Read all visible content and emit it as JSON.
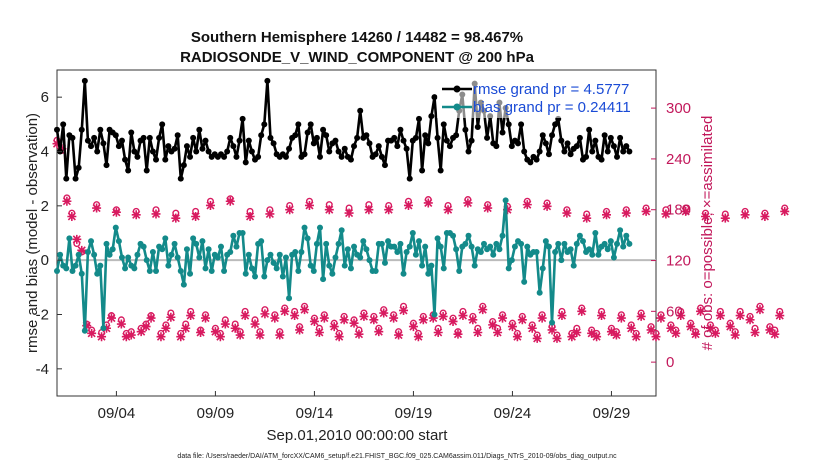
{
  "chart_data": {
    "type": "line",
    "title_line1": "Southern Hemisphere 14260 / 14482 = 98.467%",
    "title_line2": "RADIOSONDE_V_WIND_COMPONENT @ 200 hPa",
    "xlabel": "Sep.01,2010 00:00:00 start",
    "ylabel_left": "rmse and bias (model - observation)",
    "ylabel_right": "# of obs: o=possible; ×=assimilated",
    "footer": "data file: /Users/raeder/DAI/ATM_forcXX/CAM6_setup/f.e21.FHIST_BGC.f09_025.CAM6assim.011/Diags_NTrS_2010-09/obs_diag_output.nc",
    "x_day_range": [
      0.5,
      30.75
    ],
    "xticks": [
      {
        "day": 3.5,
        "label": "09/04"
      },
      {
        "day": 8.5,
        "label": "09/09"
      },
      {
        "day": 13.5,
        "label": "09/14"
      },
      {
        "day": 18.5,
        "label": "09/19"
      },
      {
        "day": 23.5,
        "label": "09/24"
      },
      {
        "day": 28.5,
        "label": "09/29"
      }
    ],
    "ylim_left": [
      -5,
      7
    ],
    "yticks_left": [
      "-4",
      "-2",
      "0",
      "2",
      "4",
      "6"
    ],
    "ylim_right": [
      -40,
      345
    ],
    "yticks_right": [
      "0",
      "60",
      "120",
      "180",
      "240",
      "300"
    ],
    "colors": {
      "rmse": "#000000",
      "bias": "#138a8a",
      "counts": "#d81b60",
      "zero_line": "#bbbbbb"
    },
    "series": [
      {
        "name": "rmse grand pr = 4.5777",
        "values": [
          4.8,
          4.0,
          5.0,
          3.0,
          4.6,
          4.5,
          3.0,
          3.4,
          4.8,
          6.6,
          4.4,
          4.2,
          4.5,
          4.0,
          4.8,
          4.3,
          3.5,
          4.8,
          4.7,
          4.6,
          4.2,
          4.4,
          3.7,
          3.3,
          4.7,
          4.0,
          3.8,
          4.4,
          4.5,
          3.3,
          4.5,
          4.0,
          3.7,
          4.5,
          5.0,
          3.7,
          4.2,
          4.0,
          4.1,
          4.6,
          3.0,
          3.5,
          4.2,
          3.8,
          4.5,
          4.0,
          4.8,
          4.1,
          4.4,
          4.0,
          3.8,
          3.9,
          3.8,
          3.9,
          3.8,
          4.0,
          4.5,
          4.2,
          3.8,
          4.4,
          5.2,
          3.6,
          4.4,
          4.0,
          3.7,
          3.8,
          4.6,
          5.0,
          6.6,
          4.5,
          4.3,
          3.9,
          3.8,
          3.9,
          3.8,
          4.1,
          4.5,
          4.6,
          5.0,
          3.8,
          3.9,
          4.7,
          5.0,
          4.3,
          4.5,
          3.8,
          4.8,
          4.6,
          4.0,
          4.3,
          4.4,
          4.0,
          3.8,
          4.1,
          3.8,
          3.7,
          4.2,
          4.5,
          5.5,
          4.5,
          4.6,
          4.3,
          3.8,
          3.9,
          4.2,
          3.8,
          3.5,
          4.4,
          4.4,
          4.5,
          4.2,
          4.8,
          4.4,
          4.1,
          3.0,
          4.4,
          4.5,
          5.2,
          3.3,
          4.6,
          4.3,
          5.3,
          6.0,
          4.5,
          3.3,
          5.0,
          4.4,
          4.2,
          4.5,
          4.6,
          5.5,
          6.1,
          4.8,
          4.0,
          4.4,
          6.5,
          4.9,
          5.8,
          5.5,
          4.5,
          5.3,
          4.3,
          4.2,
          5.8,
          4.7,
          5.6,
          5.0,
          4.2,
          4.4,
          4.3,
          5.0,
          4.0,
          3.7,
          3.6,
          3.8,
          3.7,
          4.0,
          4.6,
          4.3,
          3.9,
          4.6,
          5.0,
          5.2,
          4.4,
          4.0,
          4.3,
          3.9,
          4.1,
          4.2,
          4.5,
          3.7,
          3.8,
          4.8,
          4.0,
          4.4,
          3.8,
          3.7,
          4.6,
          4.0,
          4.5,
          4.2,
          3.8,
          4.5,
          4.0,
          4.2,
          4.0
        ]
      },
      {
        "name": "bias grand pr = 0.24411",
        "values": [
          -0.4,
          0.2,
          -0.2,
          -0.3,
          0.8,
          -0.4,
          -0.2,
          0.2,
          -0.5,
          -2.6,
          0.3,
          0.7,
          0.2,
          -0.5,
          -0.2,
          -2.5,
          0.6,
          0.2,
          0.4,
          1.2,
          0.7,
          0.1,
          -0.3,
          0.1,
          -0.2,
          -0.3,
          0.2,
          0.6,
          0.5,
          0.0,
          -0.4,
          0.3,
          -0.4,
          0.5,
          0.4,
          0.8,
          -0.2,
          0.2,
          0.6,
          0.1,
          -0.4,
          -0.9,
          0.4,
          -0.5,
          0.8,
          0.6,
          0.1,
          0.7,
          -0.3,
          0.4,
          -0.4,
          0.2,
          0.1,
          0.5,
          -0.4,
          0.2,
          0.3,
          0.9,
          0.5,
          1.0,
          1.0,
          -0.5,
          0.2,
          -0.3,
          -0.6,
          0.6,
          0.7,
          -0.6,
          0.0,
          0.2,
          -0.1,
          -0.3,
          0.2,
          -0.6,
          0.1,
          -1.4,
          0.2,
          0.3,
          -0.4,
          0.3,
          1.2,
          0.8,
          -0.2,
          -0.4,
          0.6,
          1.2,
          -0.7,
          0.6,
          -0.2,
          -0.5,
          0.1,
          0.6,
          1.1,
          -0.2,
          0.4,
          -0.3,
          0.5,
          0.2,
          0.1,
          0.7,
          0.4,
          0.0,
          -0.4,
          -0.4,
          0.6,
          0.6,
          -0.1,
          0.7,
          0.5,
          0.5,
          0.3,
          0.6,
          -0.5,
          0.3,
          0.5,
          1.0,
          0.2,
          0.7,
          -0.2,
          0.5,
          -0.5,
          -0.2,
          -2.0,
          0.8,
          0.5,
          -0.3,
          1.0,
          1.0,
          0.9,
          0.4,
          -0.4,
          0.5,
          0.6,
          0.9,
          0.5,
          -0.2,
          0.4,
          0.3,
          0.6,
          0.4,
          0.5,
          0.2,
          0.6,
          0.4,
          0.9,
          2.2,
          -0.3,
          0.0,
          0.5,
          0.7,
          0.6,
          -0.8,
          0.5,
          0.2,
          0.3,
          0.3,
          -1.2,
          -0.3,
          0.7,
          0.5,
          -2.3,
          0.3,
          0.6,
          0.0,
          0.6,
          0.3,
          0.4,
          -0.2,
          0.6,
          0.9,
          0.7,
          0.3,
          0.4,
          0.2,
          1.0,
          0.2,
          0.5,
          0.6,
          0.4,
          0.7,
          0.1,
          0.6,
          1.1,
          0.5,
          0.9,
          0.6
        ]
      }
    ],
    "counts_assimilated": [
      258,
      252,
      190,
      172,
      145,
      132,
      43,
      34,
      182,
      30,
      40,
      52,
      177,
      45,
      30,
      32,
      174,
      36,
      42,
      52,
      175,
      30,
      40,
      53,
      170,
      30,
      40,
      55,
      172,
      35,
      52,
      185,
      36,
      30,
      45,
      190,
      40,
      32,
      55,
      172,
      45,
      32,
      57,
      175,
      52,
      32,
      60,
      180,
      55,
      38,
      62,
      185,
      48,
      35,
      52,
      180,
      42,
      30,
      50,
      176,
      46,
      33,
      54,
      180,
      50,
      36,
      58,
      180,
      52,
      32,
      61,
      185,
      42,
      30,
      50,
      188,
      52,
      35,
      54,
      180,
      48,
      33,
      55,
      188,
      50,
      35,
      62,
      182,
      44,
      35,
      52,
      180,
      42,
      30,
      50,
      186,
      40,
      28,
      52,
      184,
      38,
      28,
      55,
      176,
      30,
      35,
      60,
      170,
      34,
      30,
      55,
      174,
      36,
      32,
      52,
      176,
      40,
      30,
      54,
      178,
      38,
      30,
      52,
      175,
      40,
      34,
      55,
      178,
      42,
      33,
      60,
      172,
      40,
      34,
      55,
      170,
      42,
      32,
      55,
      174,
      50,
      35,
      62,
      172,
      38,
      33,
      55,
      178
    ],
    "counts_possible": [
      262,
      250,
      194,
      176,
      140,
      130,
      45,
      38,
      186,
      35,
      44,
      55,
      180,
      50,
      34,
      36,
      178,
      40,
      45,
      55,
      180,
      34,
      44,
      58,
      176,
      34,
      45,
      60,
      178,
      38,
      56,
      190,
      40,
      34,
      50,
      193,
      45,
      36,
      60,
      178,
      50,
      36,
      62,
      180,
      56,
      36,
      64,
      185,
      60,
      42,
      66,
      190,
      52,
      40,
      56,
      186,
      46,
      34,
      54,
      182,
      50,
      38,
      58,
      186,
      54,
      40,
      62,
      185,
      56,
      36,
      66,
      190,
      46,
      34,
      54,
      192,
      56,
      40,
      58,
      185,
      52,
      36,
      60,
      192,
      54,
      40,
      66,
      186,
      48,
      40,
      56,
      184,
      46,
      34,
      54,
      190,
      44,
      32,
      56,
      188,
      42,
      32,
      60,
      180,
      34,
      40,
      64,
      175,
      38,
      34,
      60,
      178,
      40,
      36,
      56,
      180,
      44,
      34,
      58,
      182,
      42,
      34,
      56,
      180,
      44,
      38,
      60,
      182,
      46,
      36,
      64,
      176,
      44,
      38,
      60,
      175,
      46,
      36,
      60,
      178,
      54,
      40,
      66,
      176,
      42,
      38,
      60,
      182
    ]
  }
}
